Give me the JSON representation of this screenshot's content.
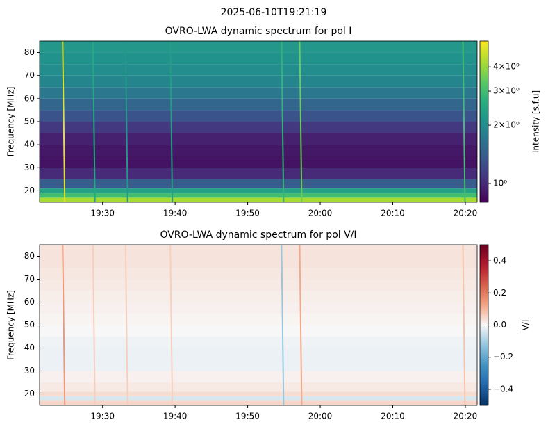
{
  "figure_title": "2025-06-10T19:21:19",
  "chart_data": [
    {
      "type": "spectrogram",
      "title": "OVRO-LWA dynamic spectrum for pol I",
      "ylabel": "Frequency [MHz]",
      "xlim": [
        "19:21:19",
        "20:21:38"
      ],
      "xticks": [
        "19:30",
        "19:40",
        "19:50",
        "20:00",
        "20:10",
        "20:20"
      ],
      "ylim": [
        15,
        85
      ],
      "yticks": [
        20,
        30,
        40,
        50,
        60,
        70,
        80
      ],
      "freq_edges": [
        15,
        17,
        19,
        21,
        25,
        30,
        35,
        40,
        45,
        50,
        55,
        60,
        65,
        70,
        75,
        80,
        85
      ],
      "values": [
        4.2,
        3.0,
        2.4,
        1.4,
        1.0,
        0.88,
        0.9,
        0.95,
        1.1,
        1.3,
        1.5,
        1.7,
        1.9,
        2.0,
        2.1,
        2.2
      ],
      "bursts": [
        {
          "time": "19:24:30",
          "value": 5.0
        },
        {
          "time": "19:28:40",
          "value": 2.5
        },
        {
          "time": "19:33:10",
          "value": 2.2
        },
        {
          "time": "19:39:20",
          "value": 2.3
        },
        {
          "time": "19:54:40",
          "value": 2.8
        },
        {
          "time": "19:57:10",
          "value": 3.5
        },
        {
          "time": "20:19:40",
          "value": 3.0
        }
      ],
      "colorbar": {
        "label": "Intensity [s.f.u]",
        "scale": "log",
        "colormap": "viridis",
        "lim": [
          0.8,
          5.44
        ],
        "ticks": [
          {
            "value": 1,
            "label": "10⁰"
          },
          {
            "value": 2,
            "label": "2×10⁰"
          },
          {
            "value": 3,
            "label": "3×10⁰"
          },
          {
            "value": 4,
            "label": "4×10⁰"
          }
        ]
      }
    },
    {
      "type": "spectrogram",
      "title": "OVRO-LWA dynamic spectrum for pol V/I",
      "ylabel": "Frequency [MHz]",
      "xlim": [
        "19:21:19",
        "20:21:38"
      ],
      "xticks": [
        "19:30",
        "19:40",
        "19:50",
        "20:00",
        "20:10",
        "20:20"
      ],
      "ylim": [
        15,
        85
      ],
      "yticks": [
        20,
        30,
        40,
        50,
        60,
        70,
        80
      ],
      "freq_edges": [
        15,
        17,
        19,
        21,
        25,
        30,
        35,
        40,
        45,
        50,
        55,
        60,
        65,
        70,
        75,
        80,
        85
      ],
      "values": [
        0.05,
        -0.04,
        0.04,
        0.02,
        0.01,
        -0.015,
        -0.015,
        -0.01,
        0.0,
        0.005,
        0.01,
        0.015,
        0.02,
        0.025,
        0.03,
        0.03
      ],
      "bursts": [
        {
          "time": "19:24:30",
          "value": 0.15
        },
        {
          "time": "19:28:40",
          "value": 0.06
        },
        {
          "time": "19:33:10",
          "value": 0.06
        },
        {
          "time": "19:39:20",
          "value": 0.06
        },
        {
          "time": "19:54:40",
          "value": -0.12
        },
        {
          "time": "19:57:10",
          "value": 0.12
        },
        {
          "time": "20:19:40",
          "value": 0.08
        }
      ],
      "colorbar": {
        "label": "V/I",
        "scale": "linear",
        "colormap": "RdBu_r",
        "lim": [
          -0.5,
          0.5
        ],
        "ticks": [
          {
            "value": -0.4,
            "label": "−0.4"
          },
          {
            "value": -0.2,
            "label": "−0.2"
          },
          {
            "value": 0,
            "label": "0.0"
          },
          0.2,
          0.4
        ]
      }
    }
  ]
}
